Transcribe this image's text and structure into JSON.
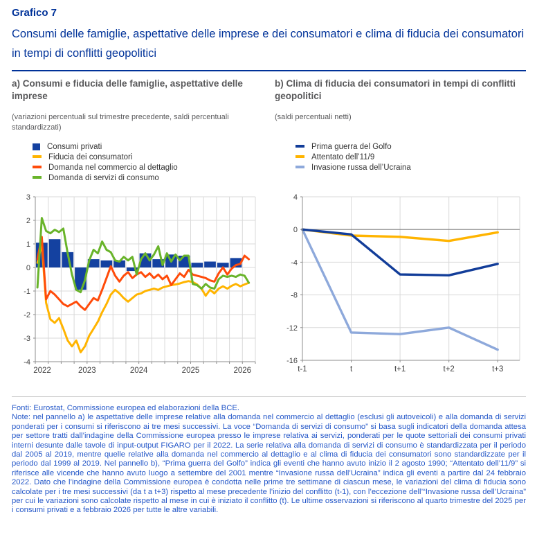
{
  "header": {
    "label": "Grafico 7",
    "title": "Consumi delle famiglie, aspettative delle imprese e dei consumatori e clima di fiducia dei consumatori in tempi di conflitti geopolitici"
  },
  "panel_a": {
    "heading": "a) Consumi e fiducia delle famiglie, aspettative delle imprese",
    "units": "(variazioni percentuali sul trimestre precedente, saldi percentuali standardizzati)"
  },
  "panel_b": {
    "heading": "b) Clima di fiducia dei consumatori in tempi di conflitti geopolitici",
    "units": "(saldi percentuali netti)"
  },
  "footer": {
    "fonti": "Fonti: Eurostat, Commissione europea ed elaborazioni della BCE.",
    "note": "Note: nel pannello a) le aspettative delle imprese relative alla domanda nel commercio al dettaglio (esclusi gli autoveicoli) e alla domanda di servizi ponderati per i consumi si riferiscono ai tre mesi successivi. La voce “Domanda di servizi di consumo” si basa sugli indicatori della domanda attesa per settore tratti dall’indagine della Commissione europea presso le imprese relativa ai servizi, ponderati per le quote settoriali dei consumi privati interni desunte dalle tavole di input-output FIGARO per il 2022. La serie relativa alla domanda di servizi di consumo è standardizzata per il periodo dal 2005 al 2019, mentre quelle relative alla domanda nel commercio al dettaglio e al clima di fiducia dei consumatori sono standardizzate per il periodo dal 1999 al 2019. Nel pannello b), “Prima guerra del Golfo” indica gli eventi che hanno avuto inizio il 2 agosto 1990; “Attentato dell’11/9” si riferisce alle vicende che hanno avuto luogo a settembre del 2001 mentre “Invasione russa dell’Ucraina” indica gli eventi a partire dal 24 febbraio 2022. Dato che l’indagine della Commissione europea è condotta nelle prime tre settimane di ciascun mese, le variazioni del clima di fiducia sono calcolate per i tre mesi successivi (da t a t+3) rispetto al mese precedente l’inizio del conflitto (t-1), con l’eccezione dell’“Invasione russa dell’Ucraina” per cui le variazioni sono calcolate rispetto al mese in cui è iniziato il conflitto (t). Le ultime osservazioni si riferiscono al quarto trimestre del 2025 per i consumi privati e a febbraio 2026 per tutte le altre variabili."
  },
  "chart_data": [
    {
      "type": "bar+line",
      "panel": "a",
      "x_unit": "month",
      "x_start": "2022-01",
      "x_end": "2026-02",
      "months_domain": 51,
      "ylim": [
        -4,
        3
      ],
      "y_ticks": [
        3,
        2,
        1,
        0,
        -1,
        -2,
        -3,
        -4
      ],
      "x_tick_labels": [
        "2022",
        "2023",
        "2024",
        "2025",
        "2026"
      ],
      "x_tick_month_index": [
        0,
        12,
        24,
        36,
        48
      ],
      "grid": "quarterly-vertical, unit-horizontal",
      "bar_series": {
        "name": "Consumi privati",
        "color": "#1441a0",
        "frequency": "quarterly",
        "categories": [
          "2022-Q1",
          "2022-Q2",
          "2022-Q3",
          "2022-Q4",
          "2023-Q1",
          "2023-Q2",
          "2023-Q3",
          "2023-Q4",
          "2024-Q1",
          "2024-Q2",
          "2024-Q3",
          "2024-Q4",
          "2025-Q1",
          "2025-Q2",
          "2025-Q3",
          "2025-Q4"
        ],
        "values": [
          1.05,
          1.2,
          0.65,
          -0.95,
          0.35,
          0.3,
          0.3,
          -0.15,
          0.6,
          0.35,
          0.55,
          0.5,
          0.2,
          0.25,
          0.2,
          0.4
        ]
      },
      "line_series": [
        {
          "name": "Fiducia dei consumatori",
          "color": "#ffb400",
          "values": [
            0.2,
            1.0,
            -1.5,
            -2.2,
            -2.35,
            -2.15,
            -2.6,
            -3.1,
            -3.35,
            -3.1,
            -3.6,
            -3.35,
            -2.9,
            -2.6,
            -2.3,
            -1.9,
            -1.55,
            -1.15,
            -0.95,
            -1.1,
            -1.3,
            -1.45,
            -1.3,
            -1.15,
            -1.1,
            -1.0,
            -0.95,
            -0.9,
            -0.95,
            -0.85,
            -0.8,
            -0.75,
            -0.72,
            -0.68,
            -0.62,
            -0.58,
            -0.62,
            -0.72,
            -0.9,
            -1.2,
            -0.95,
            -1.1,
            -0.9,
            -0.8,
            -0.9,
            -0.78,
            -0.7,
            -0.8,
            -0.72,
            -0.65
          ]
        },
        {
          "name": "Domanda nel commercio al dettaglio",
          "color": "#ff4b0a",
          "values": [
            0.35,
            1.3,
            -1.35,
            -1.0,
            -1.15,
            -1.35,
            -1.55,
            -1.65,
            -1.55,
            -1.45,
            -1.65,
            -1.8,
            -1.55,
            -1.3,
            -1.4,
            -0.95,
            -0.45,
            0.05,
            -0.35,
            -0.6,
            -0.35,
            -0.2,
            -0.45,
            -0.3,
            -0.2,
            -0.4,
            -0.25,
            -0.45,
            -0.3,
            -0.5,
            -0.35,
            -0.75,
            -0.5,
            -0.25,
            -0.4,
            -0.1,
            -0.3,
            -0.35,
            -0.4,
            -0.45,
            -0.55,
            -0.6,
            -0.25,
            0.0,
            -0.3,
            -0.05,
            0.1,
            0.15,
            0.5,
            0.35
          ]
        },
        {
          "name": "Domanda di servizi di consumo",
          "color": "#69b42a",
          "values": [
            -0.85,
            2.1,
            1.55,
            1.45,
            1.6,
            1.5,
            1.65,
            0.6,
            -0.3,
            -0.95,
            -1.05,
            -0.55,
            0.3,
            0.75,
            0.6,
            1.1,
            0.75,
            0.65,
            0.3,
            0.25,
            0.45,
            0.3,
            0.45,
            -0.3,
            0.35,
            0.6,
            0.3,
            0.55,
            0.9,
            0.1,
            0.6,
            0.25,
            0.55,
            0.3,
            0.5,
            0.5,
            -0.7,
            -0.75,
            -0.9,
            -0.7,
            -0.85,
            -0.9,
            -0.5,
            -0.35,
            -0.4,
            -0.35,
            -0.4,
            -0.3,
            -0.35,
            -0.65
          ]
        }
      ]
    },
    {
      "type": "line",
      "panel": "b",
      "categories": [
        "t-1",
        "t",
        "t+1",
        "t+2",
        "t+3"
      ],
      "ylim": [
        -16,
        4
      ],
      "y_ticks": [
        4,
        0,
        -4,
        -8,
        -12,
        -16
      ],
      "zero_line": true,
      "series": [
        {
          "name": "Prima guerra del Golfo",
          "color": "#123d99",
          "values": [
            0,
            -0.6,
            -5.5,
            -5.6,
            -4.2
          ]
        },
        {
          "name": "Attentato dell’11/9",
          "color": "#ffb400",
          "values": [
            0,
            -0.75,
            -0.9,
            -1.4,
            -0.35
          ]
        },
        {
          "name": "Invasione russa dell’Ucraina",
          "color": "#8ea9db",
          "values": [
            0,
            -12.6,
            -12.8,
            -12.0,
            -14.7
          ]
        }
      ]
    }
  ]
}
